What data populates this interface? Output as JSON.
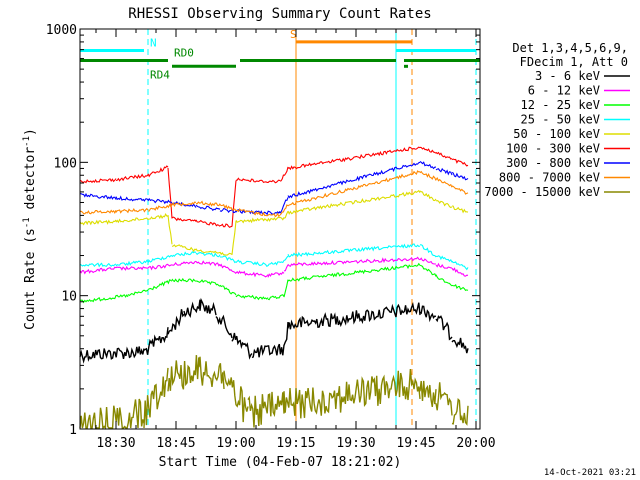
{
  "chart_data": {
    "type": "line",
    "title": "RHESSI Observing Summary Count Rates",
    "xlabel": "Start Time (04-Feb-07 18:21:02)",
    "ylabel_main": "Count Rate (s",
    "ylabel_sup1": "-1",
    "ylabel_mid": " detector",
    "ylabel_sup2": "-1",
    "ylabel_end": ")",
    "y_scale": "log",
    "ylim": [
      1,
      1000
    ],
    "xlim": [
      "18:21",
      "20:01"
    ],
    "x_ticks": [
      {
        "t": "18:30",
        "label": "18:30"
      },
      {
        "t": "18:45",
        "label": "18:45"
      },
      {
        "t": "19:00",
        "label": "19:00"
      },
      {
        "t": "19:15",
        "label": "19:15"
      },
      {
        "t": "19:30",
        "label": "19:30"
      },
      {
        "t": "19:45",
        "label": "19:45"
      },
      {
        "t": "20:00",
        "label": "20:00"
      }
    ],
    "y_ticks": [
      {
        "v": 1,
        "label": "1"
      },
      {
        "v": 10,
        "label": "10"
      },
      {
        "v": 100,
        "label": "100"
      },
      {
        "v": 1000,
        "label": "1000"
      }
    ],
    "legend_position": "right",
    "legend_header": [
      "Det 1,3,4,5,6,9,",
      "FDecim 1, Att 0"
    ],
    "series": [
      {
        "name": "3 - 6 keV",
        "color": "#000000",
        "points": [
          [
            "18:21",
            3.6
          ],
          [
            "18:37",
            3.8
          ],
          [
            "18:43",
            5.2
          ],
          [
            "18:47",
            7.5
          ],
          [
            "18:51",
            8.5
          ],
          [
            "18:55",
            7.5
          ],
          [
            "18:59",
            5.0
          ],
          [
            "19:04",
            3.7
          ],
          [
            "19:12",
            4.0
          ],
          [
            "19:13",
            6.0
          ],
          [
            "19:46",
            8.0
          ],
          [
            "19:50",
            7.0
          ],
          [
            "19:54",
            5.0
          ],
          [
            "19:58",
            4.0
          ]
        ]
      },
      {
        "name": "6 - 12 keV",
        "color": "#ff00ff",
        "points": [
          [
            "18:21",
            15
          ],
          [
            "18:30",
            16
          ],
          [
            "18:38",
            16
          ],
          [
            "18:44",
            17
          ],
          [
            "18:50",
            18
          ],
          [
            "18:56",
            17
          ],
          [
            "19:00",
            15
          ],
          [
            "19:08",
            14
          ],
          [
            "19:12",
            15
          ],
          [
            "19:13",
            17
          ],
          [
            "19:46",
            19
          ],
          [
            "19:50",
            17
          ],
          [
            "19:54",
            16
          ],
          [
            "19:58",
            14
          ]
        ]
      },
      {
        "name": "12 - 25 keV",
        "color": "#00ff00",
        "points": [
          [
            "18:21",
            9
          ],
          [
            "18:33",
            10
          ],
          [
            "18:38",
            11
          ],
          [
            "18:44",
            13
          ],
          [
            "18:50",
            13
          ],
          [
            "18:56",
            12
          ],
          [
            "19:00",
            10
          ],
          [
            "19:08",
            9.5
          ],
          [
            "19:12",
            10
          ],
          [
            "19:13",
            13
          ],
          [
            "19:46",
            17
          ],
          [
            "19:50",
            14
          ],
          [
            "19:54",
            12
          ],
          [
            "19:58",
            11
          ]
        ]
      },
      {
        "name": "25 - 50 keV",
        "color": "#00ffff",
        "points": [
          [
            "18:21",
            17
          ],
          [
            "18:30",
            17
          ],
          [
            "18:38",
            18
          ],
          [
            "18:44",
            20
          ],
          [
            "18:50",
            21
          ],
          [
            "18:56",
            20
          ],
          [
            "19:00",
            18
          ],
          [
            "19:08",
            17
          ],
          [
            "19:12",
            18
          ],
          [
            "19:13",
            20
          ],
          [
            "19:46",
            24
          ],
          [
            "19:50",
            20
          ],
          [
            "19:54",
            18
          ],
          [
            "19:58",
            16
          ]
        ]
      },
      {
        "name": "50 - 100 keV",
        "color": "#dddd00",
        "points": [
          [
            "18:21",
            35
          ],
          [
            "18:30",
            36
          ],
          [
            "18:38",
            38
          ],
          [
            "18:43",
            40
          ],
          [
            "18:44",
            24
          ],
          [
            "18:50",
            22
          ],
          [
            "18:56",
            21
          ],
          [
            "18:59",
            20
          ],
          [
            "19:00",
            36
          ],
          [
            "19:06",
            37
          ],
          [
            "19:12",
            38
          ],
          [
            "19:13",
            42
          ],
          [
            "19:46",
            60
          ],
          [
            "19:50",
            52
          ],
          [
            "19:54",
            46
          ],
          [
            "19:58",
            42
          ]
        ]
      },
      {
        "name": "100 - 300 keV",
        "color": "#ff0000",
        "points": [
          [
            "18:21",
            72
          ],
          [
            "18:30",
            74
          ],
          [
            "18:38",
            80
          ],
          [
            "18:43",
            92
          ],
          [
            "18:44",
            38
          ],
          [
            "18:50",
            36
          ],
          [
            "18:56",
            34
          ],
          [
            "18:59",
            33
          ],
          [
            "19:00",
            75
          ],
          [
            "19:06",
            72
          ],
          [
            "19:11",
            72
          ],
          [
            "19:13",
            90
          ],
          [
            "19:46",
            130
          ],
          [
            "19:50",
            118
          ],
          [
            "19:54",
            105
          ],
          [
            "19:58",
            95
          ]
        ]
      },
      {
        "name": "300 - 800 keV",
        "color": "#0000ff",
        "points": [
          [
            "18:21",
            57
          ],
          [
            "18:30",
            54
          ],
          [
            "18:38",
            52
          ],
          [
            "18:44",
            50
          ],
          [
            "18:50",
            47
          ],
          [
            "18:56",
            44
          ],
          [
            "19:00",
            43
          ],
          [
            "19:06",
            42
          ],
          [
            "19:11",
            42
          ],
          [
            "19:13",
            55
          ],
          [
            "19:46",
            100
          ],
          [
            "19:50",
            90
          ],
          [
            "19:54",
            82
          ],
          [
            "19:58",
            75
          ]
        ]
      },
      {
        "name": "800 - 7000 keV",
        "color": "#ff8800",
        "points": [
          [
            "18:21",
            42
          ],
          [
            "18:30",
            43
          ],
          [
            "18:38",
            44
          ],
          [
            "18:44",
            48
          ],
          [
            "18:50",
            50
          ],
          [
            "18:56",
            48
          ],
          [
            "19:00",
            44
          ],
          [
            "19:06",
            41
          ],
          [
            "19:11",
            40
          ],
          [
            "19:13",
            48
          ],
          [
            "19:46",
            85
          ],
          [
            "19:50",
            75
          ],
          [
            "19:54",
            66
          ],
          [
            "19:58",
            58
          ]
        ]
      },
      {
        "name": "7000 - 15000 keV",
        "color": "#888800",
        "points": [
          [
            "18:21",
            1.0
          ],
          [
            "18:37",
            1.3
          ],
          [
            "18:43",
            2.5
          ],
          [
            "18:51",
            2.8
          ],
          [
            "18:57",
            2.5
          ],
          [
            "19:03",
            1.3
          ],
          [
            "19:12",
            1.5
          ],
          [
            "19:46",
            2.2
          ],
          [
            "19:50",
            1.8
          ],
          [
            "19:54",
            1.4
          ],
          [
            "19:58",
            1.2
          ]
        ]
      }
    ],
    "gaps": [
      [
        "19:14",
        "19:46"
      ]
    ],
    "vlines": [
      {
        "t": "18:21",
        "color": "#00ffff",
        "style": "solid"
      },
      {
        "t": "18:38",
        "color": "#00ffff",
        "style": "dashed"
      },
      {
        "t": "19:15",
        "color": "#ff8800",
        "style": "solid"
      },
      {
        "t": "19:40",
        "color": "#00ffff",
        "style": "solid"
      },
      {
        "t": "19:44",
        "color": "#ff8800",
        "style": "dashed"
      },
      {
        "t": "20:00",
        "color": "#00ffff",
        "style": "dashed"
      }
    ],
    "flag_bars": [
      {
        "label": "N",
        "color": "#00ffff",
        "value": 690,
        "segments": [
          [
            "18:21",
            "18:37"
          ],
          [
            "19:40",
            "20:00"
          ]
        ],
        "label_at": "18:38"
      },
      {
        "label": "S",
        "color": "#ff8800",
        "value": 800,
        "segments": [
          [
            "19:15",
            "19:44"
          ]
        ],
        "label_at": "19:13"
      },
      {
        "label": "RD0",
        "color": "#008800",
        "value": 580,
        "segments": [
          [
            "18:21",
            "18:43"
          ],
          [
            "19:01",
            "19:40"
          ],
          [
            "19:42",
            "20:01"
          ]
        ],
        "label_at": "18:44"
      },
      {
        "label": "RD4",
        "color": "#008800",
        "value": 525,
        "segments": [
          [
            "18:44",
            "19:00"
          ],
          [
            "19:42",
            "19:43"
          ]
        ],
        "label_at": "18:38"
      }
    ],
    "footer_date": "14-Oct-2021 03:21"
  }
}
